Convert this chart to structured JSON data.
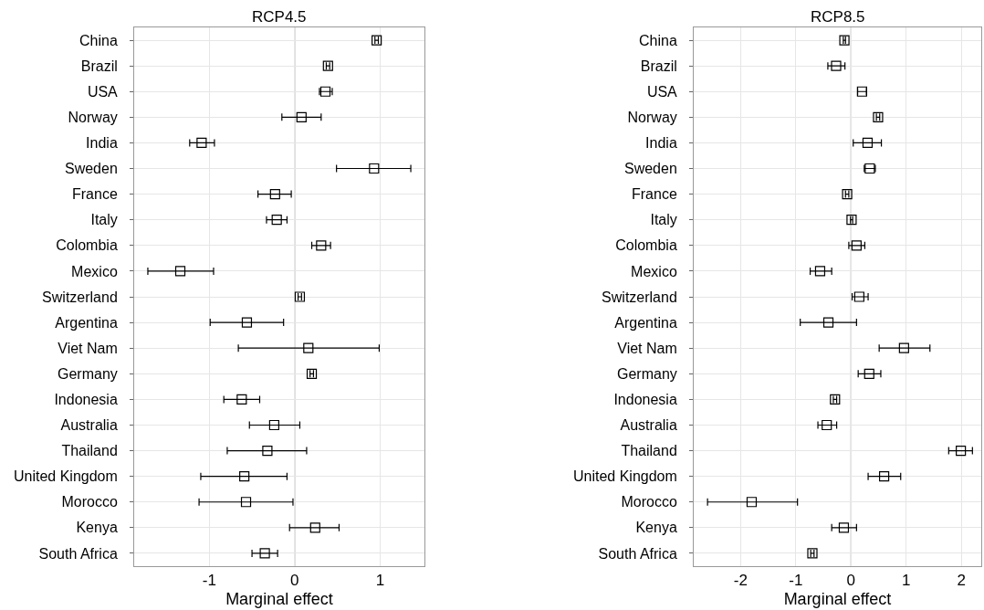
{
  "chart_data": [
    {
      "type": "scatter",
      "orientation": "horizontal",
      "title": "RCP4.5",
      "xlabel": "Marginal effect",
      "marker": "square",
      "color": "#000000",
      "grid": true,
      "categories": [
        "China",
        "Brazil",
        "USA",
        "Norway",
        "India",
        "Sweden",
        "France",
        "Italy",
        "Colombia",
        "Mexico",
        "Switzerland",
        "Argentina",
        "Viet Nam",
        "Germany",
        "Indonesia",
        "Australia",
        "Thailand",
        "United Kingdom",
        "Morocco",
        "Kenya",
        "South Africa"
      ],
      "values": [
        0.96,
        0.39,
        0.36,
        0.08,
        -1.09,
        0.93,
        -0.23,
        -0.21,
        0.31,
        -1.34,
        0.06,
        -0.56,
        0.16,
        0.2,
        -0.62,
        -0.24,
        -0.32,
        -0.59,
        -0.57,
        0.24,
        -0.35
      ],
      "errors": [
        0.02,
        0.02,
        [
          0.29,
          0.44
        ],
        [
          -0.15,
          0.31
        ],
        [
          -1.23,
          -0.94
        ],
        [
          0.49,
          1.36
        ],
        [
          -0.43,
          -0.04
        ],
        [
          -0.33,
          -0.09
        ],
        [
          0.2,
          0.42
        ],
        [
          -1.72,
          -0.95
        ],
        0.02,
        [
          -0.99,
          -0.13
        ],
        [
          -0.66,
          0.99
        ],
        0.02,
        [
          -0.83,
          -0.41
        ],
        [
          -0.53,
          0.06
        ],
        [
          -0.79,
          0.14
        ],
        [
          -1.1,
          -0.09
        ],
        [
          -1.12,
          -0.02
        ],
        [
          -0.06,
          0.52
        ],
        [
          -0.5,
          -0.2
        ]
      ],
      "xlim": [
        -1.88,
        1.52
      ],
      "xticks": [
        -1,
        0,
        1
      ],
      "ref_lines": [
        {
          "axis": "x",
          "value": 0,
          "color": "#c8c8c8"
        }
      ]
    },
    {
      "type": "scatter",
      "orientation": "horizontal",
      "title": "RCP8.5",
      "xlabel": "Marginal effect",
      "marker": "square",
      "color": "#000000",
      "grid": true,
      "categories": [
        "China",
        "Brazil",
        "USA",
        "Norway",
        "India",
        "Sweden",
        "France",
        "Italy",
        "Colombia",
        "Mexico",
        "Switzerland",
        "Argentina",
        "Viet Nam",
        "Germany",
        "Indonesia",
        "Australia",
        "Thailand",
        "United Kingdom",
        "Morocco",
        "Kenya",
        "South Africa"
      ],
      "values": [
        -0.12,
        -0.27,
        0.2,
        0.49,
        0.3,
        0.34,
        -0.07,
        0.01,
        0.1,
        -0.56,
        0.15,
        -0.41,
        0.96,
        0.33,
        -0.29,
        -0.44,
        1.99,
        0.6,
        -1.8,
        -0.13,
        -0.7
      ],
      "errors": [
        0.02,
        [
          -0.42,
          -0.11
        ],
        [
          0.12,
          0.28
        ],
        0.03,
        [
          0.04,
          0.55
        ],
        [
          0.24,
          0.44
        ],
        0.03,
        0.02,
        [
          -0.04,
          0.25
        ],
        [
          -0.74,
          -0.35
        ],
        [
          0.02,
          0.31
        ],
        [
          -0.92,
          0.1
        ],
        [
          0.51,
          1.43
        ],
        [
          0.13,
          0.54
        ],
        0.03,
        [
          -0.6,
          -0.26
        ],
        [
          1.77,
          2.2
        ],
        [
          0.31,
          0.9
        ],
        [
          -2.6,
          -0.97
        ],
        [
          -0.35,
          0.1
        ],
        0.03
      ],
      "xlim": [
        -2.85,
        2.36
      ],
      "xticks": [
        -2,
        -1,
        0,
        1,
        2
      ],
      "ref_lines": [
        {
          "axis": "x",
          "value": 0,
          "color": "#c8c8c8"
        }
      ]
    }
  ]
}
